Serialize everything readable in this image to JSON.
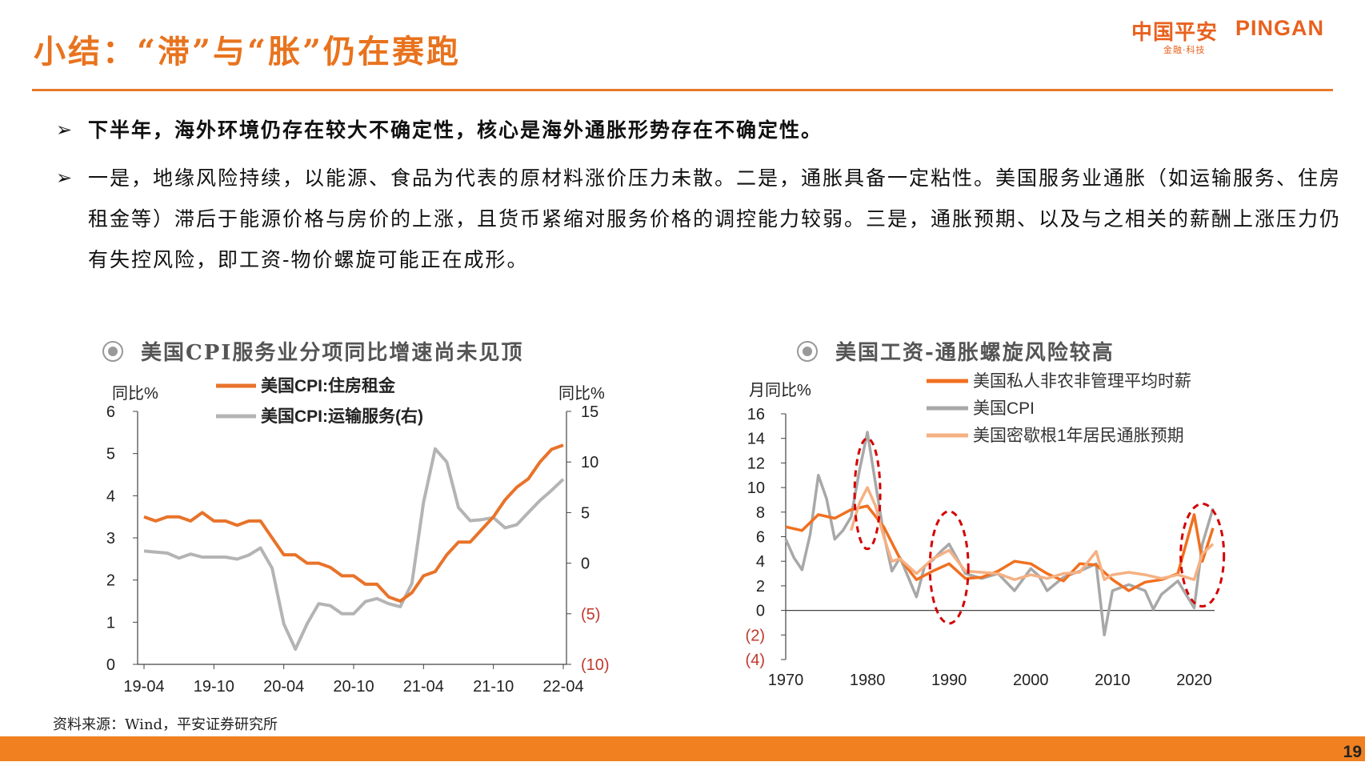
{
  "slide": {
    "title": "小结：“滞”与“胀”仍在赛跑",
    "logo_cn": "中国平安",
    "logo_en": "PINGAN",
    "logo_sub": "金融·科技",
    "bullets": [
      {
        "arrow": "➢",
        "text": "下半年，海外环境仍存在较大不确定性，核心是海外通胀形势存在不确定性。"
      },
      {
        "arrow": "➢",
        "text": "一是，地缘风险持续，以能源、食品为代表的原材料涨价压力未散。二是，通胀具备一定粘性。美国服务业通胀（如运输服务、住房租金等）滞后于能源价格与房价的上涨，且货币紧缩对服务价格的调控能力较弱。三是，通胀预期、以及与之相关的薪酬上涨压力仍有失控风险，即工资-物价螺旋可能正在成形。"
      }
    ],
    "source": "资料来源：Wind，平安证券研究所",
    "page_number": "19",
    "accent_color": "#e8731e"
  },
  "chart_data": [
    {
      "type": "line",
      "title": "美国CPI服务业分项同比增速尚未见顶",
      "ylabel": "同比%",
      "y2label": "同比%",
      "ylim": [
        0,
        6
      ],
      "y2lim": [
        -10,
        15
      ],
      "yticks": [
        "0",
        "1",
        "2",
        "3",
        "4",
        "5",
        "6"
      ],
      "y2ticks": [
        "(10)",
        "(5)",
        "0",
        "5",
        "10",
        "15"
      ],
      "x_ticks": [
        "19-04",
        "19-10",
        "20-04",
        "20-10",
        "21-04",
        "21-10",
        "22-04"
      ],
      "legend": "top",
      "series": [
        {
          "name": "美国CPI:住房租金",
          "axis": "left",
          "color": "#e8732a",
          "values": [
            3.5,
            3.4,
            3.5,
            3.5,
            3.4,
            3.6,
            3.4,
            3.4,
            3.3,
            3.4,
            3.4,
            3.0,
            2.6,
            2.6,
            2.4,
            2.4,
            2.3,
            2.1,
            2.1,
            1.9,
            1.9,
            1.6,
            1.5,
            1.7,
            2.1,
            2.2,
            2.6,
            2.9,
            2.9,
            3.2,
            3.5,
            3.9,
            4.2,
            4.4,
            4.8,
            5.1,
            5.2
          ]
        },
        {
          "name": "美国CPI:运输服务(右)",
          "axis": "right",
          "color": "#b4b4b4",
          "values": [
            1.2,
            1.1,
            1.0,
            0.5,
            0.9,
            0.6,
            0.6,
            0.6,
            0.4,
            0.8,
            1.5,
            -0.5,
            -6.0,
            -8.5,
            -6.0,
            -4.0,
            -4.2,
            -5.0,
            -5.0,
            -3.8,
            -3.5,
            -4.0,
            -4.3,
            -2.0,
            6.0,
            11.3,
            10.0,
            5.5,
            4.2,
            4.3,
            4.5,
            3.5,
            3.8,
            5.0,
            6.2,
            7.2,
            8.3
          ]
        }
      ]
    },
    {
      "type": "line",
      "title": "美国工资-通胀螺旋风险较高",
      "ylabel": "月同比%",
      "ylim": [
        -4,
        16
      ],
      "yticks": [
        "(4)",
        "(2)",
        "0",
        "2",
        "4",
        "6",
        "8",
        "10",
        "12",
        "14",
        "16"
      ],
      "x_ticks": [
        "1970",
        "1980",
        "1990",
        "2000",
        "2010",
        "2020"
      ],
      "xlim": [
        1970,
        2022.5
      ],
      "legend": "top",
      "series": [
        {
          "name": "美国私人非农非管理平均时薪",
          "color": "#f07020",
          "x": [
            1970,
            1972,
            1974,
            1976,
            1978,
            1980,
            1982,
            1984,
            1986,
            1988,
            1990,
            1992,
            1994,
            1996,
            1998,
            2000,
            2002,
            2004,
            2006,
            2008,
            2010,
            2012,
            2014,
            2016,
            2018,
            2020,
            2021,
            2022.3
          ],
          "values": [
            6.8,
            6.5,
            7.8,
            7.5,
            8.2,
            8.5,
            6.8,
            4.2,
            2.5,
            3.2,
            3.8,
            2.6,
            2.7,
            3.2,
            4.0,
            3.8,
            3.0,
            2.4,
            3.8,
            3.7,
            2.5,
            1.6,
            2.3,
            2.5,
            3.0,
            7.8,
            4.0,
            6.7
          ]
        },
        {
          "name": "美国CPI",
          "color": "#a8a8a8",
          "x": [
            1970,
            1971,
            1972,
            1973,
            1974,
            1975,
            1976,
            1977,
            1978,
            1979,
            1980,
            1981,
            1982,
            1983,
            1984,
            1986,
            1987,
            1988,
            1989,
            1990,
            1991,
            1992,
            1994,
            1996,
            1998,
            2000,
            2001,
            2002,
            2004,
            2006,
            2008,
            2009,
            2010,
            2012,
            2014,
            2015,
            2016,
            2018,
            2020,
            2021,
            2022.3
          ],
          "values": [
            5.8,
            4.3,
            3.3,
            6.2,
            11.0,
            9.1,
            5.8,
            6.5,
            7.6,
            11.3,
            14.5,
            10.3,
            6.2,
            3.2,
            4.3,
            1.1,
            3.6,
            4.1,
            4.8,
            5.4,
            4.2,
            3.0,
            2.6,
            3.0,
            1.6,
            3.4,
            2.8,
            1.6,
            2.7,
            3.2,
            3.8,
            -2.0,
            1.6,
            2.1,
            1.6,
            0.1,
            1.3,
            2.4,
            0.2,
            5.4,
            8.3
          ]
        },
        {
          "name": "美国密歇根1年居民通胀预期",
          "color": "#f5b183",
          "x": [
            1978,
            1979,
            1980,
            1981,
            1982,
            1983,
            1984,
            1986,
            1988,
            1990,
            1992,
            1994,
            1996,
            1998,
            2000,
            2002,
            2004,
            2006,
            2008,
            2009,
            2010,
            2012,
            2014,
            2016,
            2018,
            2020,
            2021,
            2022.3
          ],
          "values": [
            6.5,
            8.7,
            10.0,
            8.5,
            6.0,
            4.0,
            4.2,
            3.0,
            4.2,
            4.9,
            3.2,
            3.1,
            3.0,
            2.5,
            2.9,
            2.6,
            3.0,
            3.1,
            4.8,
            2.5,
            2.9,
            3.1,
            2.9,
            2.6,
            2.9,
            2.5,
            4.6,
            5.4
          ]
        }
      ],
      "highlight_periods": [
        "1980",
        "1990",
        "2021"
      ]
    }
  ]
}
